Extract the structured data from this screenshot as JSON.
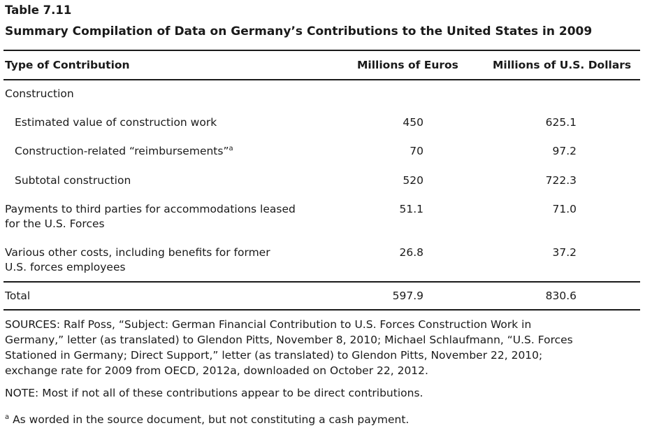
{
  "table": {
    "number": "Table 7.11",
    "title": "Summary Compilation of Data on Germany’s Contributions to the United States in 2009",
    "columns": [
      "Type of Contribution",
      "Millions of Euros",
      "Millions of U.S. Dollars"
    ],
    "rows": [
      {
        "label": "Construction",
        "euros": "",
        "dollars": ""
      },
      {
        "label": "Estimated value of construction work",
        "euros": "450",
        "dollars": "625.1"
      },
      {
        "label": "Construction-related “reimbursements”",
        "label_sup": "a",
        "euros": "70",
        "dollars": "97.2"
      },
      {
        "label": "Subtotal construction",
        "euros": "520",
        "dollars": "722.3"
      },
      {
        "label_line1": "Payments to third parties for accommodations leased",
        "label_line2": "for the U.S. Forces",
        "euros": "51.1",
        "dollars": "71.0"
      },
      {
        "label_line1": "Various other costs, including benefits for former",
        "label_line2": "U.S. forces employees",
        "euros": "26.8",
        "dollars": "37.2"
      }
    ],
    "total": {
      "label": "Total",
      "euros": "597.9",
      "dollars": "830.6"
    }
  },
  "notes": {
    "sources_lines": [
      "SOURCES: Ralf Poss, “Subject: German Financial Contribution to U.S. Forces Construction Work in",
      "Germany,” letter (as translated) to Glendon Pitts, November 8, 2010; Michael Schlaufmann, “U.S. Forces",
      "Stationed in Germany; Direct Support,” letter (as translated) to Glendon Pitts, November 22, 2010;",
      "exchange rate for 2009 from OECD, 2012a, downloaded on October 22, 2012."
    ],
    "note": "NOTE: Most if not all of these contributions appear to be direct contributions.",
    "footnote_marker": "a",
    "footnote": "As worded in the source document, but not constituting a cash payment."
  }
}
